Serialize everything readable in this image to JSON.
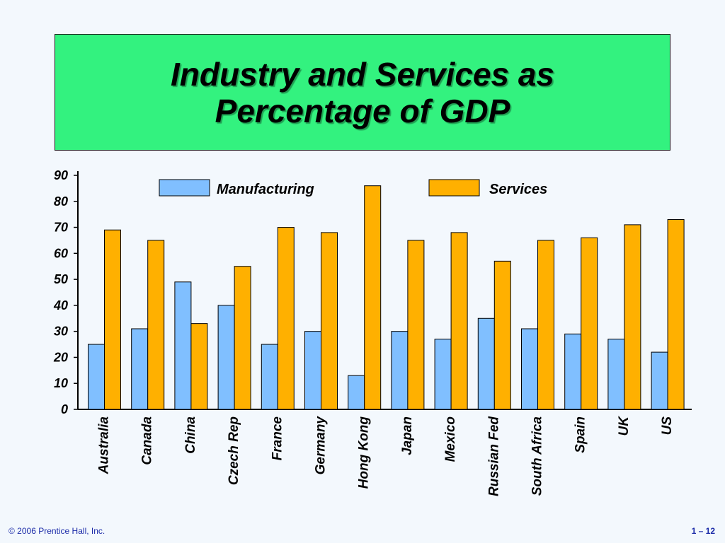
{
  "slide": {
    "title_line1": "Industry and Services as",
    "title_line2": "Percentage of GDP",
    "footer_left": "© 2006 Prentice Hall, Inc.",
    "footer_right": "1 – 12"
  },
  "chart_data": {
    "type": "bar",
    "title": "Industry and Services as Percentage of GDP",
    "xlabel": "",
    "ylabel": "",
    "ylim": [
      0,
      90
    ],
    "yticks": [
      0,
      10,
      20,
      30,
      40,
      50,
      60,
      70,
      80,
      90
    ],
    "grid": false,
    "legend_position": "top",
    "categories": [
      "Australia",
      "Canada",
      "China",
      "Czech Rep",
      "France",
      "Germany",
      "Hong Kong",
      "Japan",
      "Mexico",
      "Russian Fed",
      "South Africa",
      "Spain",
      "UK",
      "US"
    ],
    "series": [
      {
        "name": "Manufacturing",
        "color": "#80bfff",
        "values": [
          25,
          31,
          49,
          40,
          25,
          30,
          13,
          30,
          27,
          35,
          31,
          29,
          27,
          22
        ]
      },
      {
        "name": "Services",
        "color": "#ffb000",
        "values": [
          69,
          65,
          33,
          55,
          70,
          68,
          86,
          65,
          68,
          57,
          65,
          66,
          71,
          73
        ]
      }
    ]
  }
}
